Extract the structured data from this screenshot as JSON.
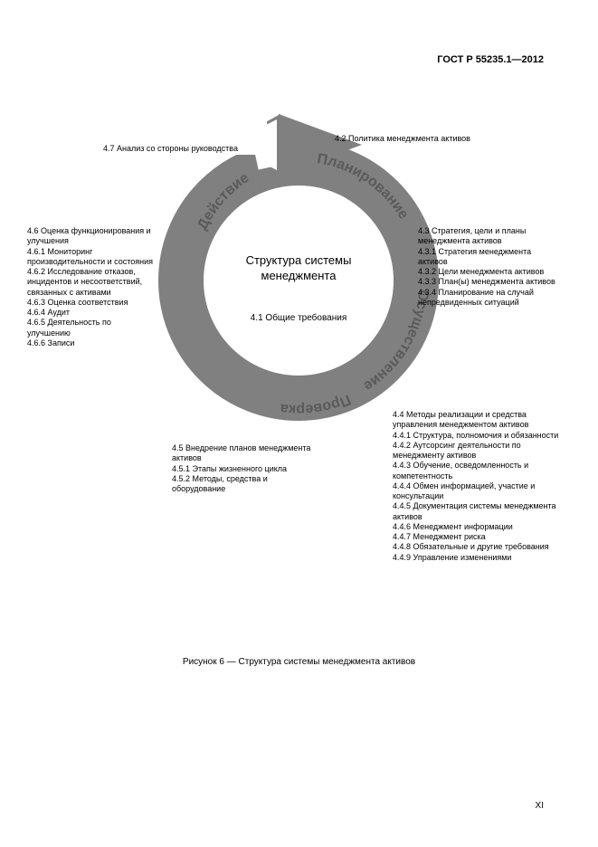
{
  "doc": {
    "header": "ГОСТ Р 55235.1—2012",
    "caption": "Рисунок 6 — Структура системы менеджмента активов",
    "page_number": "XI"
  },
  "diagram": {
    "type": "circular-arrow-pdca",
    "ring_color": "#808080",
    "arrow_color": "#808080",
    "background": "#ffffff",
    "center": {
      "title": "Структура системы менеджмента",
      "sub": "4.1 Общие требования"
    },
    "phases": {
      "plan": "Планирование",
      "do": "Осуществление",
      "check": "Проверка",
      "act": "Действие"
    },
    "phase_text_color": "#5a5a5a",
    "phase_fontsize": 16
  },
  "labels": {
    "l47": {
      "items": [
        "4.7 Анализ со стороны руководства"
      ]
    },
    "l42": {
      "items": [
        "4.2 Политика менеджмента активов"
      ]
    },
    "l43": {
      "items": [
        "4.3 Стратегия, цели и планы менеджмента активов",
        "4.3.1 Стратегия менеджмента активов",
        "4.3.2 Цели менеджмента активов",
        "4.3.3 План(ы) менеджмента активов",
        "4.3.4 Планирование на случай непредвиденных ситуаций"
      ]
    },
    "l44": {
      "items": [
        "4.4 Методы реализации и средства управления менеджментом активов",
        "4.4.1 Структура, полномочия и обязанности",
        "4.4.2 Аутсорсинг деятельности по менеджменту активов",
        "4.4.3 Обучение, осведомленность и компетентность",
        "4.4.4 Обмен информацией, участие и консультации",
        "4.4.5 Документация системы менеджмента активов",
        "4.4.6 Менеджмент информации",
        "4.4.7 Менеджмент риска",
        "4.4.8 Обязательные и другие требования",
        "4.4.9 Управление изменениями"
      ]
    },
    "l45": {
      "items": [
        "4.5 Внедрение планов менеджмента активов",
        "4.5.1 Этапы жизненного цикла",
        "4.5.2 Методы, средства и оборудование"
      ]
    },
    "l46": {
      "items": [
        "4.6 Оценка функционирования и улучшения",
        "4.6.1 Мониторинг производительности и состояния",
        "4.6.2 Исследование отказов, инцидентов и несоответствий, связанных с активами",
        "4.6.3 Оценка соответствия",
        "4.6.4 Аудит",
        "4.6.5 Деятельность по улучшению",
        "4.6.6 Записи"
      ]
    }
  }
}
